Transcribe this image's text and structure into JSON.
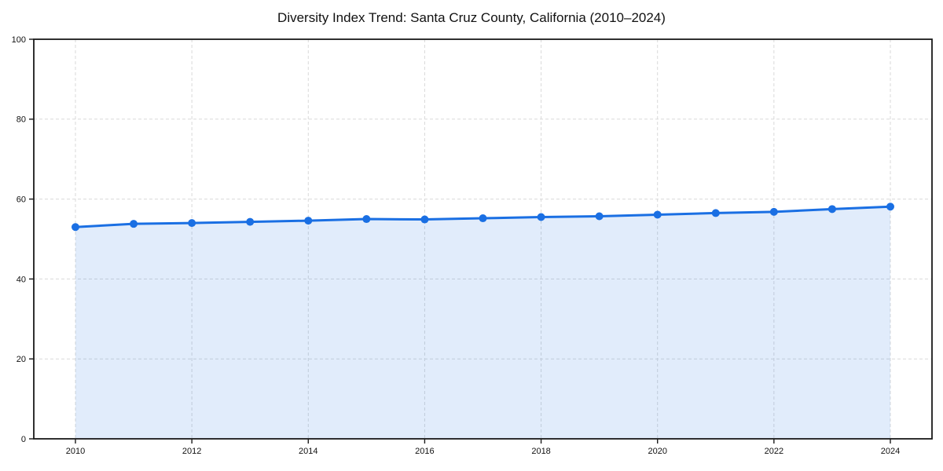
{
  "chart_data": {
    "type": "line",
    "title": "Diversity Index Trend: Santa Cruz County, California (2010–2024)",
    "xlabel": "",
    "ylabel": "",
    "x": [
      2010,
      2011,
      2012,
      2013,
      2014,
      2015,
      2016,
      2017,
      2018,
      2019,
      2020,
      2021,
      2022,
      2023,
      2024
    ],
    "series": [
      {
        "name": "Diversity Index",
        "values": [
          53.0,
          53.8,
          54.0,
          54.3,
          54.6,
          55.0,
          54.9,
          55.2,
          55.5,
          55.7,
          56.1,
          56.5,
          56.8,
          57.5,
          58.1
        ]
      }
    ],
    "ylim": [
      0,
      100
    ],
    "yticks": [
      0,
      20,
      40,
      60,
      80,
      100
    ],
    "xticks": [
      2010,
      2012,
      2014,
      2016,
      2018,
      2020,
      2022,
      2024
    ],
    "grid": true,
    "grid_style": "dashed",
    "legend_position": "none",
    "marker": "circle",
    "area_fill": true,
    "colors": {
      "line": "#1a6fe3",
      "marker": "#1a6fe3",
      "area": "rgba(26,111,227,0.13)",
      "grid": "#d9d9d9",
      "axis": "#1a1a1a",
      "text": "#111111",
      "background": "#ffffff"
    }
  }
}
